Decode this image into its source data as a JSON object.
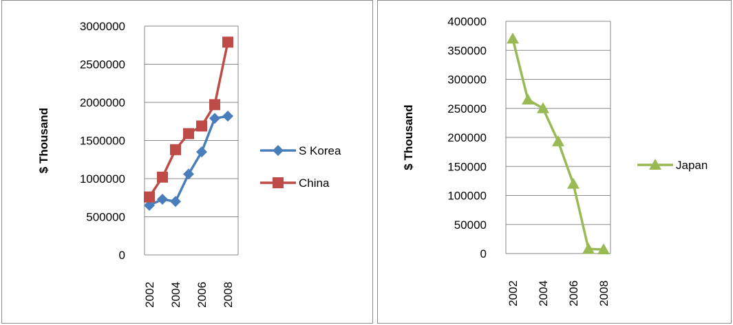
{
  "chart_data": [
    {
      "type": "line",
      "title": "",
      "xlabel": "",
      "ylabel": "$ Thousand",
      "x": [
        2002,
        2003,
        2004,
        2005,
        2006,
        2007,
        2008
      ],
      "x_tick_labels": [
        "2002",
        "2004",
        "2006",
        "2008"
      ],
      "y_tick_labels": [
        "0",
        "500000",
        "1000000",
        "1500000",
        "2000000",
        "2500000",
        "3000000"
      ],
      "ylim": [
        0,
        3000000
      ],
      "grid": "horizontal",
      "legend": "right",
      "series": [
        {
          "name": "S Korea",
          "color": "#4a7ebb",
          "marker": "diamond",
          "values": [
            650000,
            730000,
            700000,
            1060000,
            1350000,
            1790000,
            1820000
          ]
        },
        {
          "name": "China",
          "color": "#be4b48",
          "marker": "square",
          "values": [
            760000,
            1020000,
            1380000,
            1590000,
            1690000,
            1970000,
            2790000
          ]
        }
      ]
    },
    {
      "type": "line",
      "title": "",
      "xlabel": "",
      "ylabel": "$ Thousand",
      "x": [
        2002,
        2003,
        2004,
        2005,
        2006,
        2007,
        2008
      ],
      "x_tick_labels": [
        "2002",
        "2004",
        "2006",
        "2008"
      ],
      "y_tick_labels": [
        "0",
        "50000",
        "100000",
        "150000",
        "200000",
        "250000",
        "300000",
        "350000",
        "400000"
      ],
      "ylim": [
        0,
        400000
      ],
      "grid": "horizontal",
      "legend": "right",
      "series": [
        {
          "name": "Japan",
          "color": "#98b954",
          "marker": "triangle",
          "values": [
            370000,
            265000,
            250000,
            193000,
            120000,
            8000,
            7000
          ]
        }
      ]
    }
  ]
}
